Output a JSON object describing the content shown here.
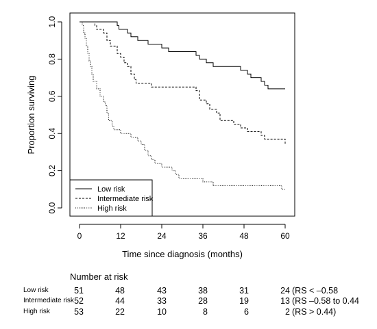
{
  "chart_data": {
    "type": "line",
    "subtype": "kaplan-meier step",
    "xlabel": "Time since diagnosis (months)",
    "ylabel": "Proportion surviving",
    "xlim": [
      0,
      60
    ],
    "ylim": [
      0,
      1
    ],
    "xticks": [
      "0",
      "12",
      "24",
      "36",
      "48",
      "60"
    ],
    "xtick_values": [
      0,
      12,
      24,
      36,
      48,
      60
    ],
    "yticks": [
      "0.0",
      "0.2",
      "0.4",
      "0.6",
      "0.8",
      "1.0"
    ],
    "ytick_values": [
      0,
      0.2,
      0.4,
      0.6,
      0.8,
      1.0
    ],
    "grid": false,
    "legend": {
      "position": "bottom-left",
      "entries": [
        "Low risk",
        "Intermediate risk",
        "High risk"
      ]
    },
    "series": [
      {
        "name": "Low risk",
        "line_style": "solid",
        "points": [
          [
            0,
            1.0
          ],
          [
            9,
            1.0
          ],
          [
            11,
            0.98
          ],
          [
            11.5,
            0.96
          ],
          [
            14,
            0.94
          ],
          [
            15,
            0.92
          ],
          [
            17,
            0.9
          ],
          [
            20,
            0.88
          ],
          [
            24,
            0.86
          ],
          [
            26,
            0.84
          ],
          [
            34,
            0.82
          ],
          [
            35,
            0.8
          ],
          [
            37,
            0.78
          ],
          [
            39,
            0.76
          ],
          [
            47,
            0.74
          ],
          [
            49,
            0.72
          ],
          [
            50,
            0.7
          ],
          [
            53,
            0.68
          ],
          [
            54,
            0.66
          ],
          [
            55,
            0.64
          ],
          [
            60,
            0.64
          ]
        ]
      },
      {
        "name": "Intermediate risk",
        "line_style": "dashed",
        "points": [
          [
            0,
            1.0
          ],
          [
            4,
            1.0
          ],
          [
            4.5,
            0.98
          ],
          [
            5,
            0.96
          ],
          [
            7,
            0.94
          ],
          [
            8,
            0.9
          ],
          [
            9,
            0.87
          ],
          [
            11,
            0.83
          ],
          [
            12,
            0.81
          ],
          [
            13,
            0.78
          ],
          [
            14,
            0.76
          ],
          [
            15,
            0.72
          ],
          [
            16,
            0.69
          ],
          [
            16.5,
            0.67
          ],
          [
            19,
            0.67
          ],
          [
            21,
            0.65
          ],
          [
            34,
            0.63
          ],
          [
            35,
            0.58
          ],
          [
            37,
            0.56
          ],
          [
            38,
            0.53
          ],
          [
            40,
            0.51
          ],
          [
            41,
            0.47
          ],
          [
            45,
            0.45
          ],
          [
            47,
            0.43
          ],
          [
            49,
            0.41
          ],
          [
            53,
            0.39
          ],
          [
            54,
            0.37
          ],
          [
            60,
            0.37
          ],
          [
            60,
            0.34
          ]
        ]
      },
      {
        "name": "High risk",
        "line_style": "dotted",
        "points": [
          [
            0,
            1.0
          ],
          [
            0.8,
            0.98
          ],
          [
            1.2,
            0.94
          ],
          [
            1.6,
            0.91
          ],
          [
            2,
            0.87
          ],
          [
            2.4,
            0.83
          ],
          [
            2.8,
            0.79
          ],
          [
            3.2,
            0.76
          ],
          [
            3.6,
            0.72
          ],
          [
            4,
            0.68
          ],
          [
            5,
            0.64
          ],
          [
            6,
            0.6
          ],
          [
            7,
            0.57
          ],
          [
            7.5,
            0.55
          ],
          [
            8,
            0.51
          ],
          [
            8.5,
            0.47
          ],
          [
            9.5,
            0.44
          ],
          [
            10,
            0.42
          ],
          [
            12,
            0.4
          ],
          [
            15,
            0.38
          ],
          [
            17,
            0.36
          ],
          [
            18,
            0.34
          ],
          [
            19,
            0.31
          ],
          [
            20,
            0.28
          ],
          [
            21,
            0.26
          ],
          [
            22,
            0.24
          ],
          [
            24,
            0.22
          ],
          [
            27,
            0.2
          ],
          [
            28,
            0.18
          ],
          [
            29,
            0.16
          ],
          [
            36,
            0.14
          ],
          [
            39,
            0.12
          ],
          [
            43,
            0.12
          ],
          [
            58,
            0.12
          ],
          [
            59,
            0.1
          ],
          [
            60,
            0.1
          ]
        ]
      }
    ]
  },
  "risk_table": {
    "title": "Number at risk",
    "rows": [
      {
        "label": "Low risk",
        "counts": [
          "51",
          "48",
          "43",
          "38",
          "31",
          "24"
        ],
        "note": "(RS < –0.58"
      },
      {
        "label": "Intermediate risk",
        "counts": [
          "52",
          "44",
          "33",
          "28",
          "19",
          "13"
        ],
        "note": "(RS –0.58 to 0.44"
      },
      {
        "label": "High risk",
        "counts": [
          "53",
          "22",
          "10",
          "8",
          "6",
          "2"
        ],
        "note": "(RS > 0.44)"
      }
    ]
  }
}
